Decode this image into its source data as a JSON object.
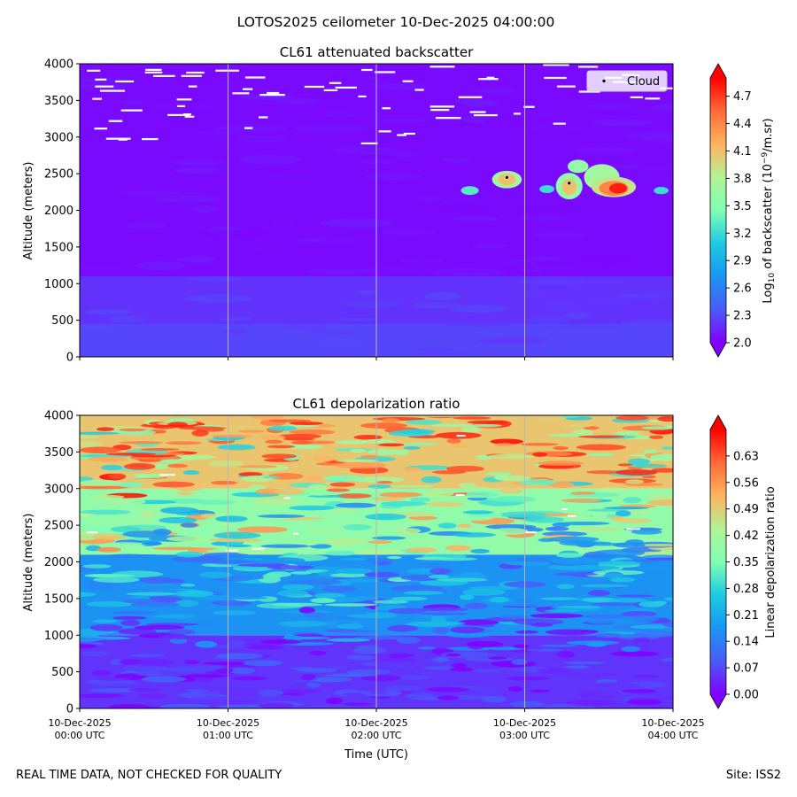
{
  "figure": {
    "suptitle": "LOTOS2025 ceilometer 10-Dec-2025 04:00:00",
    "footer_left": "REAL TIME DATA, NOT CHECKED FOR QUALITY",
    "footer_right": "Site: ISS2"
  },
  "chart_data": [
    {
      "type": "heatmap",
      "title": "CL61 attenuated backscatter",
      "ylabel": "Altitude (meters)",
      "xlabel": "",
      "x_ticks": [
        "10-Dec-2025\n00:00 UTC",
        "10-Dec-2025\n01:00 UTC",
        "10-Dec-2025\n02:00 UTC",
        "10-Dec-2025\n03:00 UTC",
        "10-Dec-2025\n04:00 UTC"
      ],
      "x_range_hours": [
        0,
        4
      ],
      "y_ticks": [
        0,
        500,
        1000,
        1500,
        2000,
        2500,
        3000,
        3500,
        4000
      ],
      "ylim": [
        0,
        4000
      ],
      "vertical_gridlines_hours": [
        1,
        2,
        3
      ],
      "colorbar": {
        "label_pre": "Log",
        "label_sub": "10",
        "label_mid": " of backscatter (10",
        "label_sup": "−9",
        "label_post": "/m.sr)",
        "ticks": [
          "2.0",
          "2.3",
          "2.6",
          "2.9",
          "3.2",
          "3.5",
          "3.8",
          "4.1",
          "4.4",
          "4.7"
        ],
        "range": [
          2.0,
          4.9
        ],
        "colormap": "rainbow"
      },
      "legend": {
        "entries": [
          "Cloud"
        ],
        "placement": "upper right"
      },
      "cloud_points": [
        {
          "time_h": 2.88,
          "altitude_m": 2450
        },
        {
          "time_h": 3.3,
          "altitude_m": 2370
        }
      ],
      "layers": {
        "near_surface_value": 2.2,
        "background_value": 2.0,
        "cloud_layer": {
          "time_h": [
            2.85,
            3.95
          ],
          "altitude_m": [
            2150,
            2700
          ],
          "peak_value": 4.8
        }
      }
    },
    {
      "type": "heatmap",
      "title": "CL61 depolarization ratio",
      "ylabel": "Altitude (meters)",
      "xlabel": "Time (UTC)",
      "x_ticks": [
        "10-Dec-2025\n00:00 UTC",
        "10-Dec-2025\n01:00 UTC",
        "10-Dec-2025\n02:00 UTC",
        "10-Dec-2025\n03:00 UTC",
        "10-Dec-2025\n04:00 UTC"
      ],
      "x_range_hours": [
        0,
        4
      ],
      "y_ticks": [
        0,
        500,
        1000,
        1500,
        2000,
        2500,
        3000,
        3500,
        4000
      ],
      "ylim": [
        0,
        4000
      ],
      "vertical_gridlines_hours": [
        1,
        2,
        3
      ],
      "colorbar": {
        "label": "Linear depolarization ratio",
        "ticks": [
          "0.00",
          "0.07",
          "0.14",
          "0.21",
          "0.28",
          "0.35",
          "0.42",
          "0.49",
          "0.56",
          "0.63"
        ],
        "range": [
          0.0,
          0.7
        ],
        "colormap": "rainbow"
      },
      "layers": {
        "near_surface_value": 0.05,
        "mid_value": 0.25,
        "upper_value": 0.5
      }
    }
  ]
}
